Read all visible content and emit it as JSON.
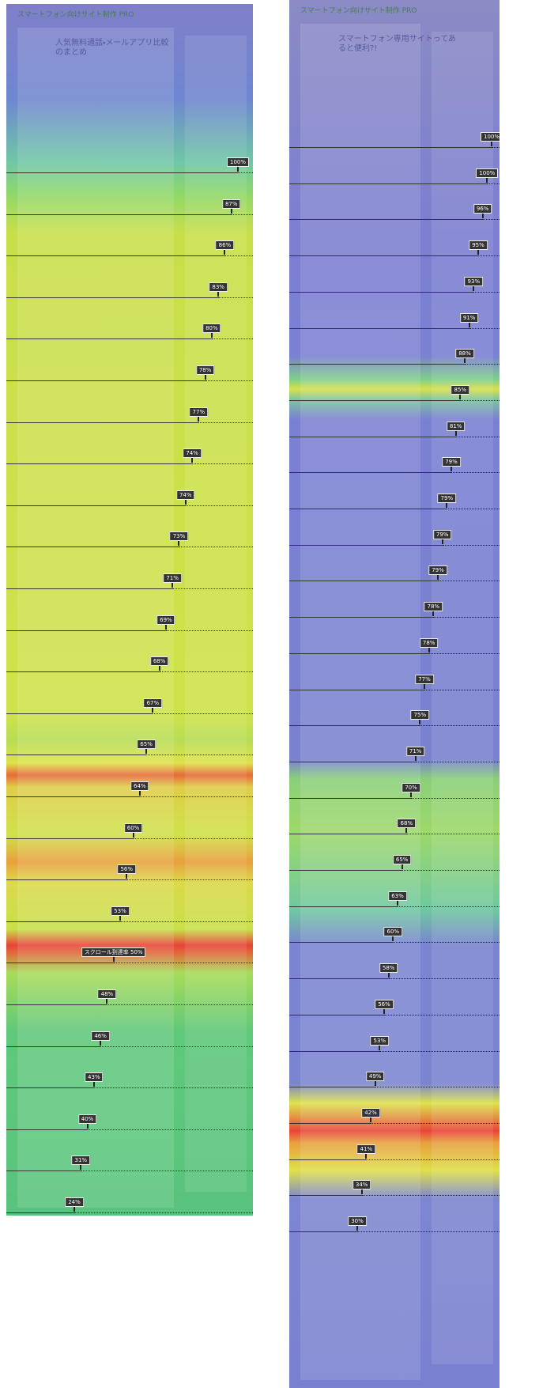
{
  "left_panel": {
    "site_name": "スマートフォン向けサイト制作 PRO",
    "article_title": "人気無料通話・メールアプリ比較のまとめ",
    "scroll_markers": [
      "100%",
      "87%",
      "86%",
      "83%",
      "80%",
      "78%",
      "77%",
      "74%",
      "74%",
      "73%",
      "71%",
      "69%",
      "68%",
      "67%",
      "65%",
      "64%",
      "60%",
      "56%",
      "53%",
      "スクロール到達率 50%",
      "48%",
      "46%",
      "43%",
      "40%",
      "31%",
      "24%"
    ]
  },
  "right_panel": {
    "site_name": "スマートフォン向けサイト制作 PRO",
    "article_title": "スマートフォン専用サイトってあると便利?!",
    "scroll_markers": [
      "100%",
      "100%",
      "96%",
      "95%",
      "93%",
      "91%",
      "88%",
      "85%",
      "81%",
      "79%",
      "79%",
      "79%",
      "79%",
      "78%",
      "78%",
      "77%",
      "75%",
      "71%",
      "70%",
      "68%",
      "65%",
      "63%",
      "60%",
      "58%",
      "56%",
      "53%",
      "49%",
      "42%",
      "41%",
      "34%",
      "30%"
    ]
  }
}
